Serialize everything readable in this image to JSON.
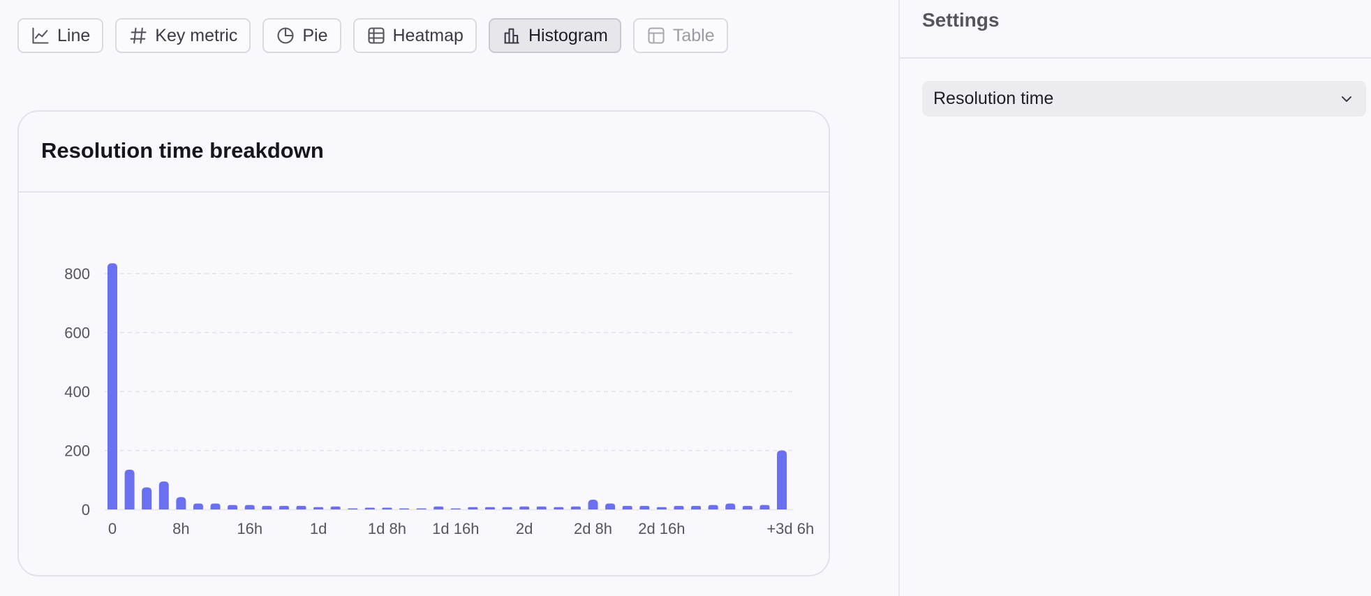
{
  "toolbar": {
    "buttons": [
      {
        "label": "Line",
        "icon": "line-chart-icon",
        "state": "normal"
      },
      {
        "label": "Key metric",
        "icon": "hash-icon",
        "state": "normal"
      },
      {
        "label": "Pie",
        "icon": "pie-chart-icon",
        "state": "normal"
      },
      {
        "label": "Heatmap",
        "icon": "grid-icon",
        "state": "normal"
      },
      {
        "label": "Histogram",
        "icon": "bar-chart-icon",
        "state": "active"
      },
      {
        "label": "Table",
        "icon": "table-icon",
        "state": "disabled"
      }
    ]
  },
  "card": {
    "title": "Resolution time breakdown"
  },
  "settings": {
    "title": "Settings",
    "metric_select": {
      "value": "Resolution time",
      "icon": "chevron-down-icon"
    }
  },
  "colors": {
    "bar": "#6b70f0",
    "grid": "#e2e2e8",
    "axis_text": "#55555e"
  },
  "chart_data": {
    "type": "bar",
    "title": "Resolution time breakdown",
    "xlabel": "",
    "ylabel": "",
    "ylim": [
      0,
      800
    ],
    "grid": true,
    "y_ticks": [
      0,
      200,
      400,
      600,
      800
    ],
    "x_tick_labels": [
      {
        "label": "0",
        "at_bin": 0
      },
      {
        "label": "8h",
        "at_bin": 4
      },
      {
        "label": "16h",
        "at_bin": 8
      },
      {
        "label": "1d",
        "at_bin": 12
      },
      {
        "label": "1d 8h",
        "at_bin": 16
      },
      {
        "label": "1d 16h",
        "at_bin": 20
      },
      {
        "label": "2d",
        "at_bin": 24
      },
      {
        "label": "2d 8h",
        "at_bin": 28
      },
      {
        "label": "2d 16h",
        "at_bin": 32
      },
      {
        "label": "+3d 6h",
        "at_bin": 39.5
      }
    ],
    "values": [
      835,
      135,
      75,
      95,
      42,
      20,
      20,
      15,
      15,
      12,
      12,
      12,
      8,
      10,
      2,
      6,
      6,
      3,
      3,
      10,
      3,
      8,
      8,
      8,
      10,
      10,
      8,
      10,
      33,
      20,
      12,
      12,
      8,
      12,
      12,
      15,
      20,
      12,
      15,
      200
    ]
  }
}
